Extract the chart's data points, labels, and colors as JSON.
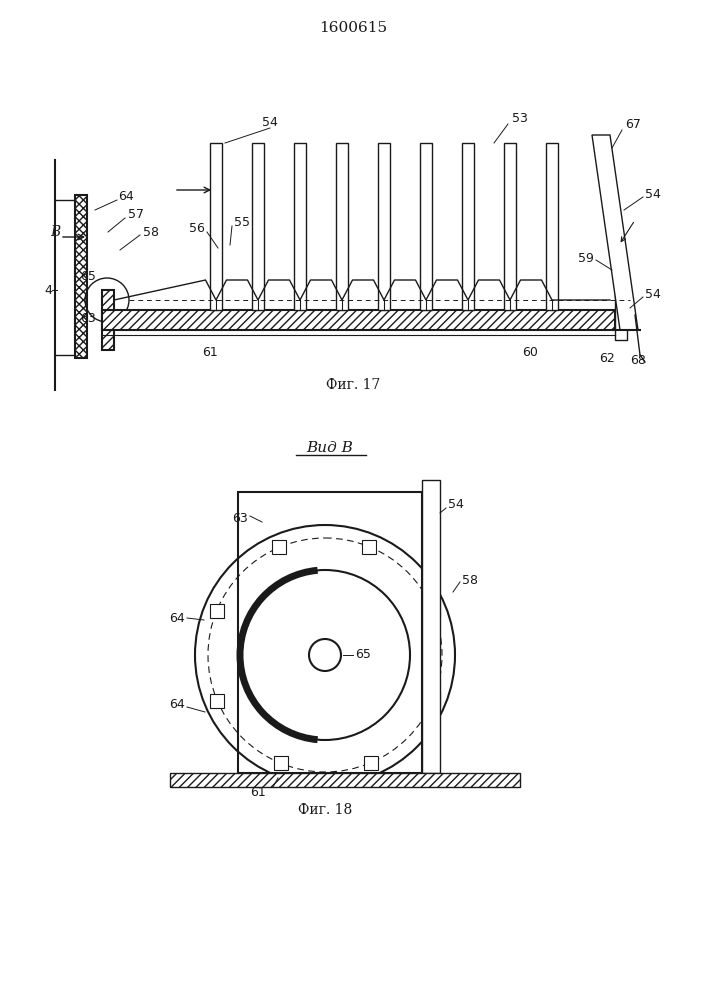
{
  "title": "1600615",
  "fig17_label": "Фиг. 17",
  "fig18_label": "Фиг. 18",
  "vid_label": "Вид В",
  "background_color": "#ffffff",
  "line_color": "#1a1a1a"
}
